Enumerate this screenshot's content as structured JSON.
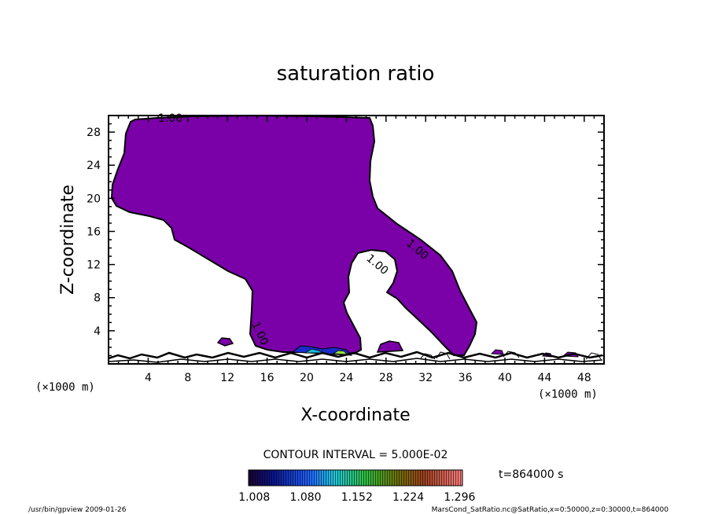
{
  "chart_data": {
    "type": "heatmap",
    "title": "saturation ratio",
    "xlabel": "X-coordinate",
    "ylabel": "Z-coordinate",
    "x_unit_label": "(×1000 m)",
    "z_unit_label": "(×1000 m)",
    "xlim": [
      0,
      50
    ],
    "ylim": [
      0,
      30
    ],
    "x_ticks": [
      4,
      8,
      12,
      16,
      20,
      24,
      28,
      32,
      36,
      40,
      44,
      48
    ],
    "y_ticks": [
      4,
      8,
      12,
      16,
      20,
      24,
      28
    ],
    "contour_interval_label": "CONTOUR INTERVAL = 5.000E-02",
    "contour_labels": [
      "1.00",
      "1.00",
      "1.00",
      "1.00"
    ],
    "time_label": "t=864000 s",
    "colorbar": {
      "tick_labels": [
        "1.008",
        "1.080",
        "1.152",
        "1.224",
        "1.296"
      ],
      "range": [
        1.0,
        1.3
      ]
    },
    "region_color": "#7a00a8",
    "footer_left": "/usr/bin/gpview   2009-01-26",
    "footer_right": "MarsCond_SatRatio.nc@SatRatio,x=0:50000,z=0:30000,t=864000"
  }
}
